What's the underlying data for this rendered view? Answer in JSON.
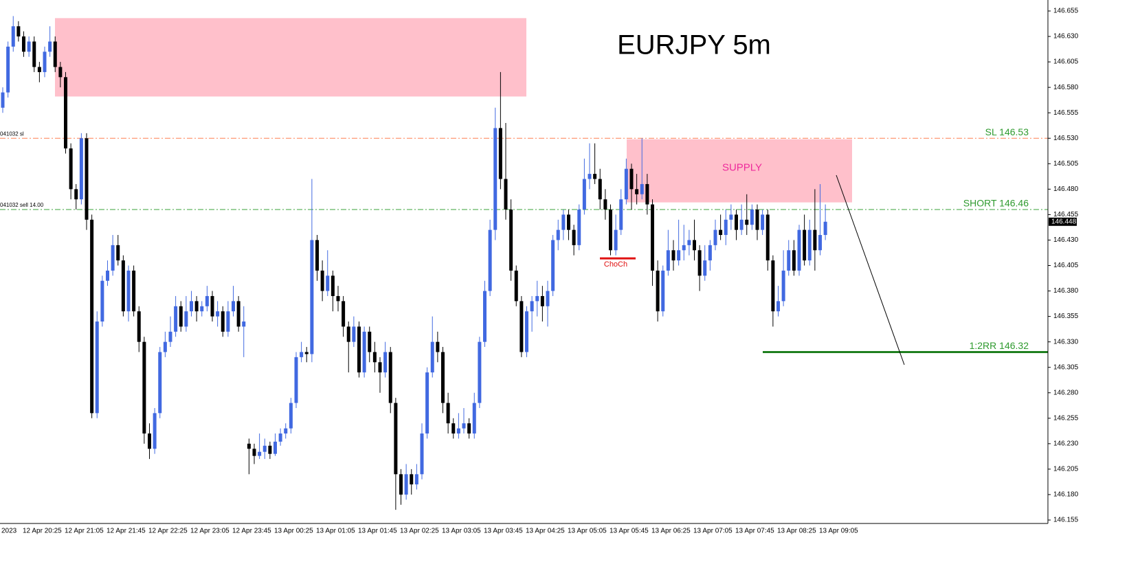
{
  "chart_data": {
    "type": "candlestick",
    "title": "EURJPY 5m",
    "up_color": "#4169e1",
    "down_color": "#000000",
    "ylim": [
      146.155,
      146.655
    ],
    "yticks": [
      146.655,
      {
        "value": 146.63,
        "label": "146.630"
      },
      146.605,
      {
        "value": 146.58,
        "label": "146.580"
      },
      146.555,
      {
        "value": 146.53,
        "label": "146.530"
      },
      146.505,
      {
        "value": 146.48,
        "label": "146.480"
      },
      146.455,
      {
        "value": 146.43,
        "label": "146.430"
      },
      146.405,
      {
        "value": 146.38,
        "label": "146.380"
      },
      146.355,
      {
        "value": 146.33,
        "label": "146.330"
      },
      146.305,
      {
        "value": 146.28,
        "label": "146.280"
      },
      146.255,
      {
        "value": 146.23,
        "label": "146.230"
      },
      146.205,
      {
        "value": 146.18,
        "label": "146.180"
      },
      146.155
    ],
    "xtick_labels": [
      "2023",
      "12 Apr 20:25",
      "12 Apr 21:05",
      "12 Apr 21:45",
      "12 Apr 22:25",
      "12 Apr 23:05",
      "12 Apr 23:45",
      "13 Apr 00:25",
      "13 Apr 01:05",
      "13 Apr 01:45",
      "13 Apr 02:25",
      "13 Apr 03:05",
      "13 Apr 03:45",
      "13 Apr 04:25",
      "13 Apr 05:05",
      "13 Apr 05:45",
      "13 Apr 06:25",
      "13 Apr 07:05",
      "13 Apr 07:45",
      "13 Apr 08:25",
      "13 Apr 09:05"
    ],
    "current_price": 146.448,
    "zones": [
      {
        "top": 146.648,
        "bottom": 146.571,
        "color": "#ffc0cb"
      },
      {
        "label": "SUPPLY",
        "top": 146.529,
        "bottom": 146.467,
        "color": "#ffc0cb",
        "label_color": "#ee2a9c"
      }
    ],
    "levels": [
      {
        "label": "SL 146.53",
        "tag": "041032 sl",
        "value": 146.53,
        "color": "#ff7f50",
        "label_color": "#2e9a2e"
      },
      {
        "label": "SHORT 146.46",
        "tag": "041032 sell 14.00",
        "value": 146.46,
        "color": "#3aa33a",
        "label_color": "#2e9a2e"
      },
      {
        "label": "1:2RR 146.32",
        "value": 146.32,
        "color": "#1f7f1f",
        "label_color": "#2e9a2e"
      }
    ],
    "choch": {
      "label": "ChoCh",
      "value": 146.412,
      "color": "#e01010"
    },
    "candles": [
      [
        146.56,
        146.58,
        146.555,
        146.575
      ],
      [
        146.575,
        146.625,
        146.57,
        146.62
      ],
      [
        146.62,
        146.65,
        146.615,
        146.64
      ],
      [
        146.64,
        146.645,
        146.625,
        146.63
      ],
      [
        146.63,
        146.635,
        146.61,
        146.615
      ],
      [
        146.615,
        146.63,
        146.61,
        146.625
      ],
      [
        146.625,
        146.63,
        146.595,
        146.6
      ],
      [
        146.6,
        146.605,
        146.585,
        146.595
      ],
      [
        146.595,
        146.62,
        146.59,
        146.615
      ],
      [
        146.615,
        146.64,
        146.61,
        146.625
      ],
      [
        146.625,
        146.63,
        146.595,
        146.6
      ],
      [
        146.6,
        146.605,
        146.58,
        146.59
      ],
      [
        146.59,
        146.595,
        146.515,
        146.52
      ],
      [
        146.52,
        146.525,
        146.47,
        146.48
      ],
      [
        146.48,
        146.485,
        146.46,
        146.47
      ],
      [
        146.47,
        146.535,
        146.465,
        146.53
      ],
      [
        146.53,
        146.535,
        146.44,
        146.45
      ],
      [
        146.45,
        146.455,
        146.255,
        146.26
      ],
      [
        146.26,
        146.36,
        146.255,
        146.35
      ],
      [
        146.35,
        146.395,
        146.345,
        146.39
      ],
      [
        146.39,
        146.41,
        146.385,
        146.4
      ],
      [
        146.4,
        146.435,
        146.395,
        146.425
      ],
      [
        146.425,
        146.435,
        146.405,
        146.41
      ],
      [
        146.41,
        146.415,
        146.355,
        146.36
      ],
      [
        146.36,
        146.405,
        146.35,
        146.4
      ],
      [
        146.4,
        146.405,
        146.355,
        146.36
      ],
      [
        146.36,
        146.365,
        146.32,
        146.33
      ],
      [
        146.33,
        146.335,
        146.23,
        146.24
      ],
      [
        146.24,
        146.25,
        146.215,
        146.225
      ],
      [
        146.225,
        146.265,
        146.22,
        146.26
      ],
      [
        146.26,
        146.325,
        146.255,
        146.32
      ],
      [
        146.32,
        146.34,
        146.315,
        146.33
      ],
      [
        146.33,
        146.355,
        146.325,
        146.34
      ],
      [
        146.34,
        146.375,
        146.335,
        146.365
      ],
      [
        146.365,
        146.37,
        146.34,
        146.345
      ],
      [
        146.345,
        146.375,
        146.34,
        146.36
      ],
      [
        146.36,
        146.38,
        146.355,
        146.37
      ],
      [
        146.37,
        146.375,
        146.35,
        146.36
      ],
      [
        146.36,
        146.37,
        146.355,
        146.365
      ],
      [
        146.365,
        146.385,
        146.36,
        146.375
      ],
      [
        146.375,
        146.38,
        146.35,
        146.355
      ],
      [
        146.355,
        146.37,
        146.345,
        146.36
      ],
      [
        146.36,
        146.365,
        146.335,
        146.34
      ],
      [
        146.34,
        146.37,
        146.335,
        146.36
      ],
      [
        146.36,
        146.385,
        146.355,
        146.37
      ],
      [
        146.37,
        146.375,
        146.34,
        146.345
      ],
      [
        146.345,
        146.365,
        146.315,
        146.35
      ],
      [
        146.23,
        146.235,
        146.2,
        146.225
      ],
      [
        146.225,
        146.23,
        146.21,
        146.218
      ],
      [
        146.218,
        146.24,
        146.215,
        146.222
      ],
      [
        146.222,
        146.235,
        146.215,
        146.228
      ],
      [
        146.228,
        146.232,
        146.215,
        146.22
      ],
      [
        146.22,
        146.24,
        146.218,
        146.232
      ],
      [
        146.232,
        146.245,
        146.228,
        146.24
      ],
      [
        146.24,
        146.25,
        146.235,
        146.245
      ],
      [
        146.245,
        146.275,
        146.24,
        146.27
      ],
      [
        146.27,
        146.32,
        146.265,
        146.315
      ],
      [
        146.315,
        146.33,
        146.31,
        146.32
      ],
      [
        146.32,
        146.325,
        146.31,
        146.318
      ],
      [
        146.318,
        146.49,
        146.31,
        146.43
      ],
      [
        146.43,
        146.435,
        146.39,
        146.4
      ],
      [
        146.4,
        146.41,
        146.37,
        146.38
      ],
      [
        146.38,
        146.42,
        146.375,
        146.395
      ],
      [
        146.395,
        146.4,
        146.36,
        146.375
      ],
      [
        146.375,
        146.385,
        146.36,
        146.37
      ],
      [
        146.37,
        146.375,
        146.335,
        146.345
      ],
      [
        146.345,
        146.35,
        146.3,
        146.33
      ],
      [
        146.33,
        146.355,
        146.325,
        146.345
      ],
      [
        146.345,
        146.35,
        146.295,
        146.3
      ],
      [
        146.3,
        146.345,
        146.295,
        146.34
      ],
      [
        146.34,
        146.345,
        146.31,
        146.32
      ],
      [
        146.32,
        146.33,
        146.3,
        146.31
      ],
      [
        146.31,
        146.315,
        146.28,
        146.3
      ],
      [
        146.3,
        146.33,
        146.295,
        146.32
      ],
      [
        146.32,
        146.325,
        146.26,
        146.27
      ],
      [
        146.27,
        146.275,
        146.165,
        146.2
      ],
      [
        146.2,
        146.205,
        146.17,
        146.18
      ],
      [
        146.18,
        146.21,
        146.175,
        146.2
      ],
      [
        146.2,
        146.205,
        146.18,
        146.19
      ],
      [
        146.19,
        146.21,
        146.185,
        146.2
      ],
      [
        146.2,
        146.25,
        146.195,
        146.24
      ],
      [
        146.24,
        146.305,
        146.235,
        146.3
      ],
      [
        146.3,
        146.355,
        146.295,
        146.33
      ],
      [
        146.33,
        146.34,
        146.31,
        146.32
      ],
      [
        146.32,
        146.325,
        146.26,
        146.27
      ],
      [
        146.27,
        146.28,
        146.24,
        146.25
      ],
      [
        146.25,
        146.255,
        146.235,
        146.24
      ],
      [
        146.24,
        146.26,
        146.235,
        146.245
      ],
      [
        146.245,
        146.265,
        146.24,
        146.25
      ],
      [
        146.25,
        146.255,
        146.235,
        146.24
      ],
      [
        146.24,
        146.28,
        146.235,
        146.27
      ],
      [
        146.27,
        146.335,
        146.265,
        146.33
      ],
      [
        146.33,
        146.39,
        146.325,
        146.38
      ],
      [
        146.38,
        146.45,
        146.375,
        146.44
      ],
      [
        146.44,
        146.56,
        146.43,
        146.54
      ],
      [
        146.54,
        146.595,
        146.48,
        146.49
      ],
      [
        146.49,
        146.545,
        146.45,
        146.46
      ],
      [
        146.46,
        146.47,
        146.39,
        146.4
      ],
      [
        146.4,
        146.405,
        146.365,
        146.37
      ],
      [
        146.37,
        146.375,
        146.315,
        146.32
      ],
      [
        146.32,
        146.365,
        146.315,
        146.36
      ],
      [
        146.36,
        146.375,
        146.34,
        146.37
      ],
      [
        146.37,
        146.39,
        146.355,
        146.375
      ],
      [
        146.375,
        146.385,
        146.35,
        146.365
      ],
      [
        146.365,
        146.39,
        146.345,
        146.38
      ],
      [
        146.38,
        146.435,
        146.375,
        146.43
      ],
      [
        146.43,
        146.45,
        146.42,
        146.44
      ],
      [
        146.44,
        146.46,
        146.43,
        146.455
      ],
      [
        146.455,
        146.46,
        146.43,
        146.44
      ],
      [
        146.44,
        146.445,
        146.415,
        146.425
      ],
      [
        146.425,
        146.465,
        146.42,
        146.46
      ],
      [
        146.46,
        146.51,
        146.455,
        146.49
      ],
      [
        146.49,
        146.525,
        146.48,
        146.495
      ],
      [
        146.495,
        146.525,
        146.485,
        146.49
      ],
      [
        146.49,
        146.5,
        146.46,
        146.47
      ],
      [
        146.47,
        146.48,
        146.45,
        146.46
      ],
      [
        146.46,
        146.465,
        146.415,
        146.42
      ],
      [
        146.42,
        146.455,
        146.415,
        146.44
      ],
      [
        146.44,
        146.48,
        146.435,
        146.47
      ],
      [
        146.47,
        146.51,
        146.465,
        146.5
      ],
      [
        146.5,
        146.505,
        146.46,
        146.48
      ],
      [
        146.48,
        146.495,
        146.465,
        146.475
      ],
      [
        146.475,
        146.53,
        146.47,
        146.485
      ],
      [
        146.485,
        146.495,
        146.455,
        146.465
      ],
      [
        146.465,
        146.47,
        146.385,
        146.4
      ],
      [
        146.4,
        146.41,
        146.35,
        146.36
      ],
      [
        146.36,
        146.405,
        146.355,
        146.4
      ],
      [
        146.4,
        146.44,
        146.395,
        146.42
      ],
      [
        146.42,
        146.43,
        146.4,
        146.41
      ],
      [
        146.41,
        146.45,
        146.405,
        146.42
      ],
      [
        146.42,
        146.445,
        146.41,
        146.425
      ],
      [
        146.425,
        146.44,
        146.415,
        146.43
      ],
      [
        146.43,
        146.45,
        146.41,
        146.42
      ],
      [
        146.42,
        146.425,
        146.38,
        146.395
      ],
      [
        146.395,
        146.425,
        146.39,
        146.41
      ],
      [
        146.41,
        146.43,
        146.4,
        146.425
      ],
      [
        146.425,
        146.45,
        146.42,
        146.44
      ],
      [
        146.44,
        146.455,
        146.43,
        146.435
      ],
      [
        146.435,
        146.46,
        146.425,
        146.45
      ],
      [
        146.45,
        146.465,
        146.44,
        146.455
      ],
      [
        146.455,
        146.46,
        146.43,
        146.44
      ],
      [
        146.44,
        146.465,
        146.435,
        146.45
      ],
      [
        146.45,
        146.475,
        146.435,
        146.445
      ],
      [
        146.445,
        146.465,
        146.44,
        146.46
      ],
      [
        146.46,
        146.465,
        146.43,
        146.44
      ],
      [
        146.44,
        146.46,
        146.435,
        146.455
      ],
      [
        146.455,
        146.46,
        146.4,
        146.41
      ],
      [
        146.41,
        146.415,
        146.345,
        146.36
      ],
      [
        146.36,
        146.385,
        146.355,
        146.37
      ],
      [
        146.37,
        146.42,
        146.365,
        146.4
      ],
      [
        146.4,
        146.43,
        146.395,
        146.42
      ],
      [
        146.42,
        146.43,
        146.395,
        146.4
      ],
      [
        146.4,
        146.445,
        146.395,
        146.44
      ],
      [
        146.44,
        146.455,
        146.405,
        146.41
      ],
      [
        146.41,
        146.45,
        146.405,
        146.44
      ],
      [
        146.44,
        146.48,
        146.4,
        146.42
      ],
      [
        146.42,
        146.485,
        146.415,
        146.435
      ],
      [
        146.435,
        146.465,
        146.43,
        146.448
      ]
    ]
  }
}
